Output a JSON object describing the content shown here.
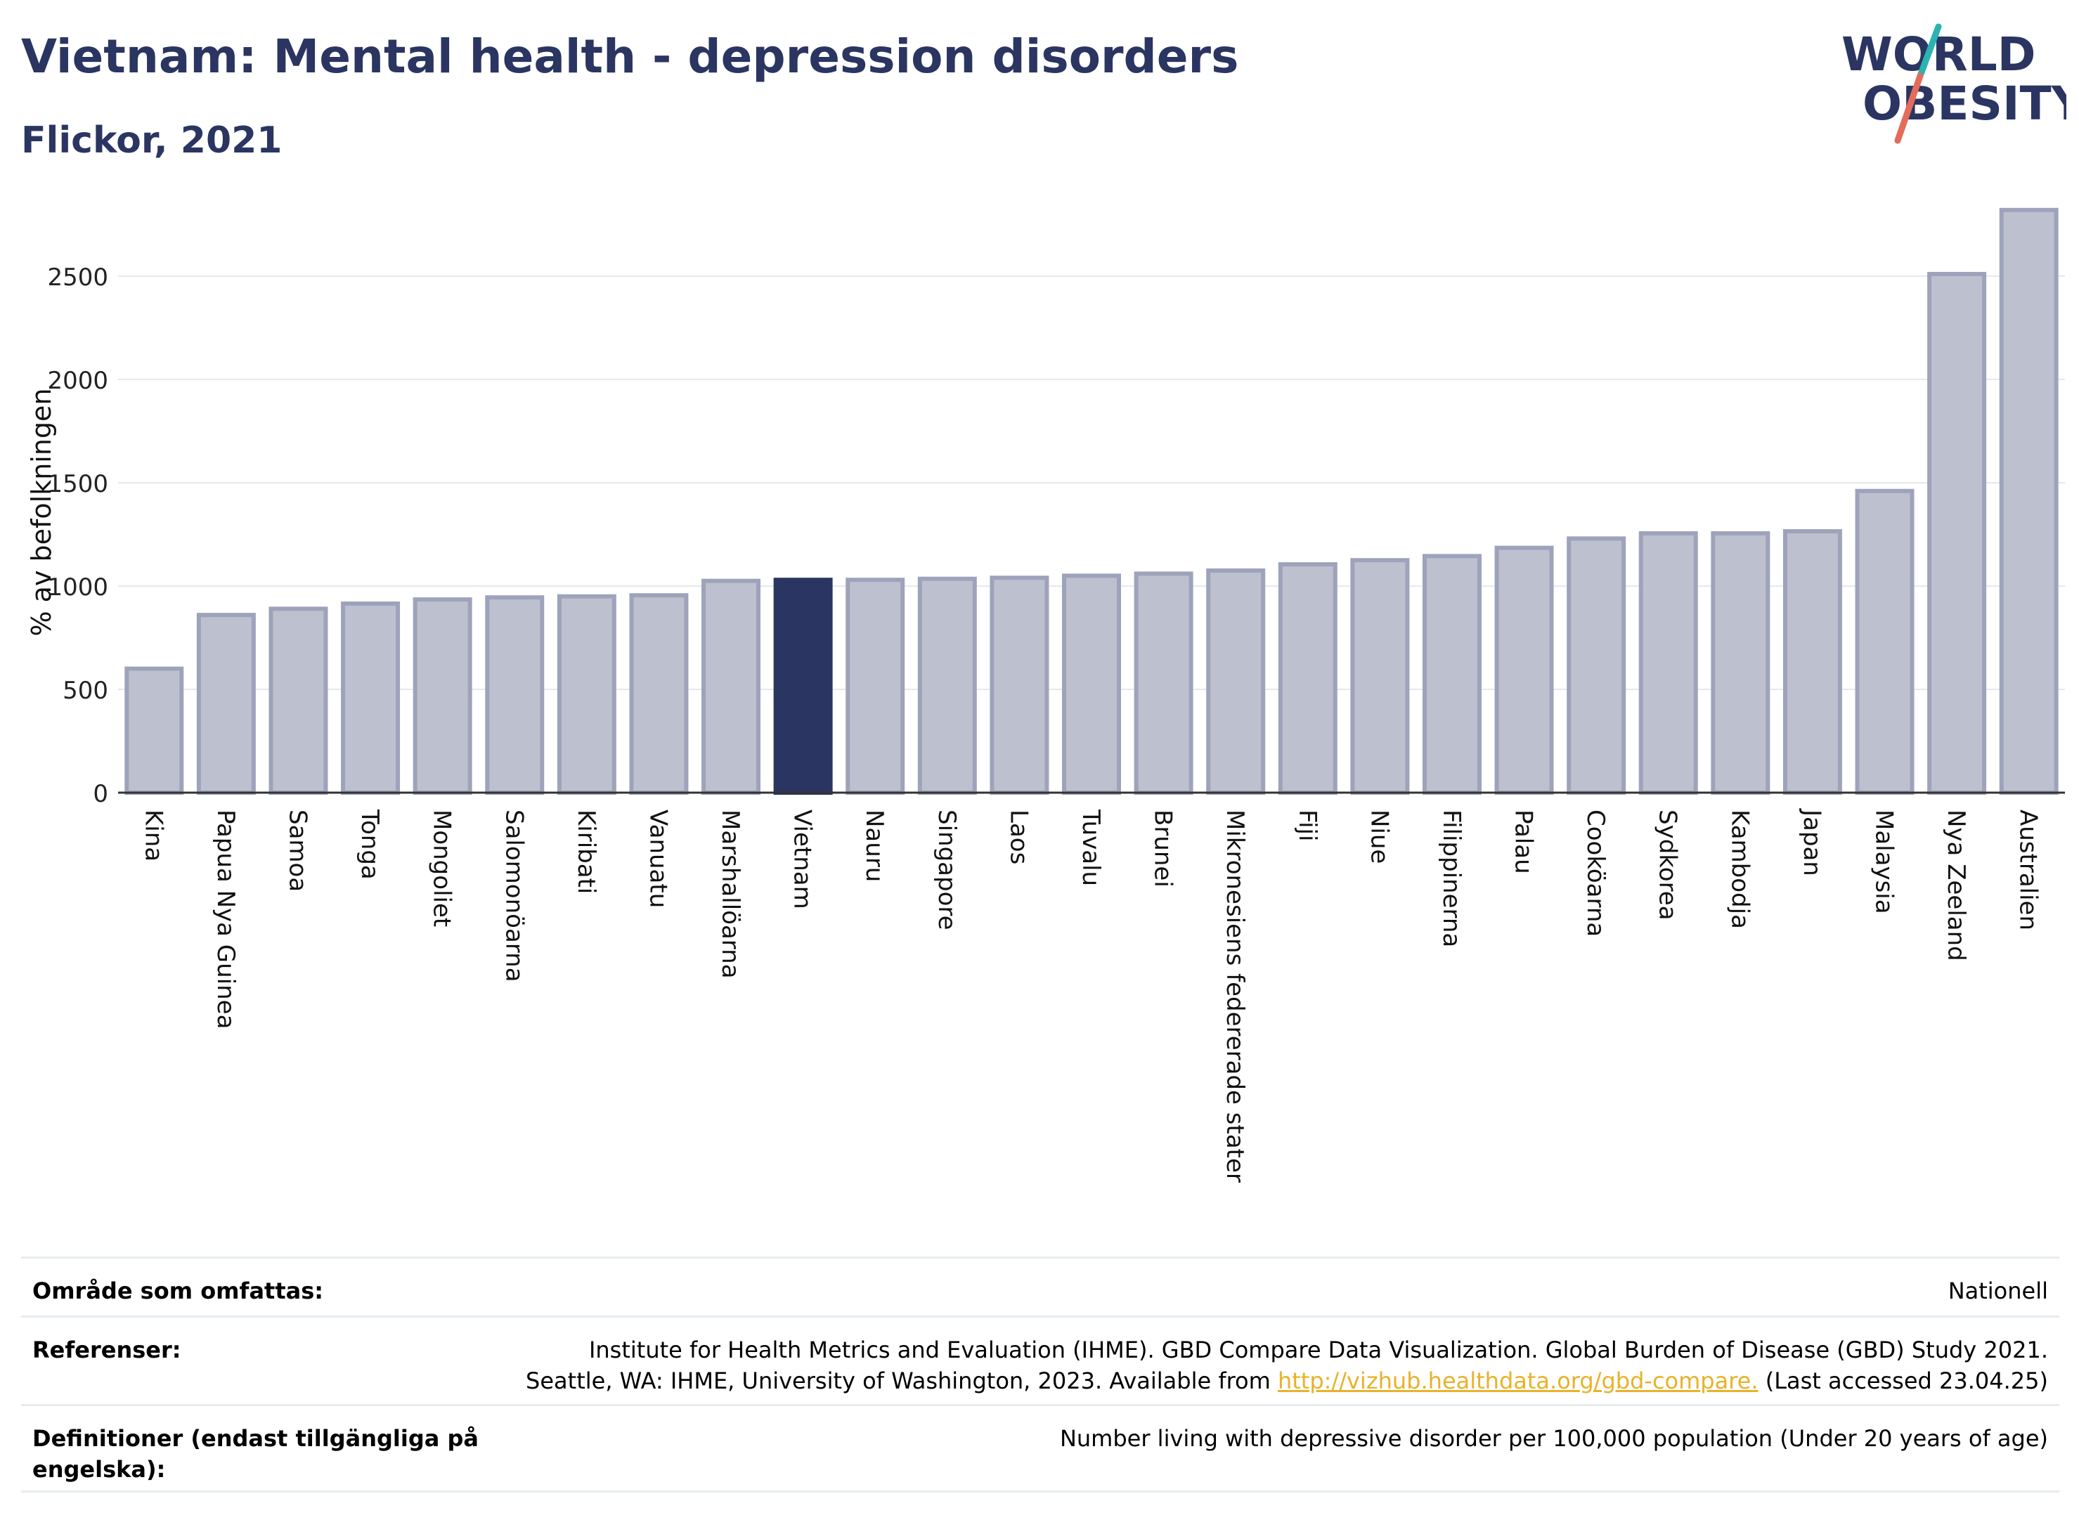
{
  "header": {
    "title": "Vietnam: Mental health - depression disorders",
    "subtitle": "Flickor, 2021"
  },
  "logo": {
    "line1": "WORLD",
    "line2": "OBESITY",
    "accent_teal": "#2ab3b1",
    "accent_red": "#e46c5b",
    "text_color": "#2b3561"
  },
  "colors": {
    "bar_default": "#bdc0ce",
    "bar_default_stroke": "#9ea3bb",
    "bar_highlight": "#2b3561",
    "grid": "#e6e8ec",
    "axis": "#333333"
  },
  "chart_data": {
    "type": "bar",
    "title": "Vietnam: Mental health - depression disorders",
    "subtitle": "Flickor, 2021",
    "ylabel": "% av befolkningen",
    "xlabel": "",
    "ylim": [
      0,
      2850
    ],
    "yticks": [
      0,
      500,
      1000,
      1500,
      2000,
      2500
    ],
    "grid": true,
    "highlight": "Vietnam",
    "categories": [
      "Kina",
      "Papua Nya Guinea",
      "Samoa",
      "Tonga",
      "Mongoliet",
      "Salomonöarna",
      "Kiribati",
      "Vanuatu",
      "Marshallöarna",
      "Vietnam",
      "Nauru",
      "Singapore",
      "Laos",
      "Tuvalu",
      "Brunei",
      "Mikronesiens federerade stater",
      "Fiji",
      "Niue",
      "Filippinerna",
      "Palau",
      "Cooköarna",
      "Sydkorea",
      "Kambodja",
      "Japan",
      "Malaysia",
      "Nya Zeeland",
      "Australien"
    ],
    "values": [
      600,
      860,
      890,
      915,
      935,
      945,
      950,
      955,
      1025,
      1030,
      1030,
      1035,
      1040,
      1050,
      1060,
      1075,
      1105,
      1125,
      1145,
      1185,
      1230,
      1255,
      1255,
      1265,
      1460,
      2510,
      2820
    ]
  },
  "footer": {
    "coverage_label": "Område som omfattas:",
    "coverage_value": "Nationell",
    "references_label": "Referenser:",
    "references_line1": "Institute for Health Metrics and Evaluation (IHME). GBD Compare Data Visualization. Global Burden of Disease (GBD) Study 2021.",
    "references_line2_pre": "Seattle, WA: IHME, University of Washington, 2023. Available from ",
    "references_link": "http://vizhub.healthdata.org/gbd-compare.",
    "references_line2_post": " (Last accessed 23.04.25)",
    "definitions_label": "Definitioner (endast tillgängliga på engelska):",
    "definitions_value": "Number living with depressive disorder per 100,000 population (Under 20 years of age)"
  }
}
